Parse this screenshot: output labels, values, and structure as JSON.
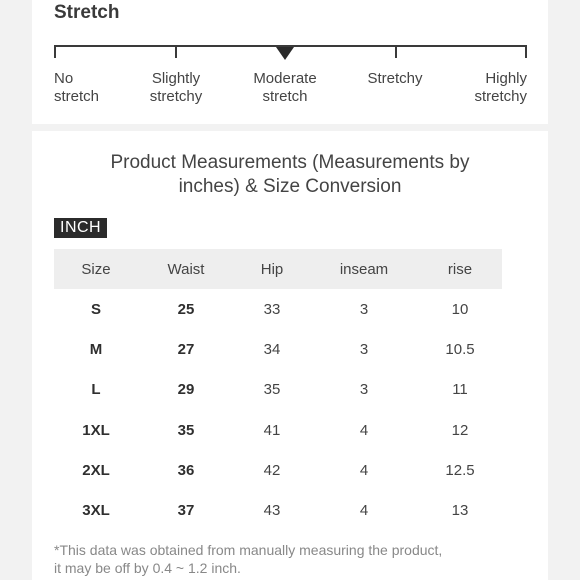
{
  "stretch": {
    "title": "Stretch",
    "labels": [
      {
        "line1": "No",
        "line2": "stretch"
      },
      {
        "line1": "Slightly",
        "line2": "stretchy"
      },
      {
        "line1": "Moderate",
        "line2": "stretch"
      },
      {
        "line1": "Stretchy",
        "line2": ""
      },
      {
        "line1": "Highly",
        "line2": "stretchy"
      }
    ],
    "selected_index": 2
  },
  "measurements": {
    "title_line1": "Product Measurements (Measurements by",
    "title_line2": "inches) & Size Conversion",
    "unit_badge": "INCH",
    "headers": [
      "Size",
      "Waist",
      "Hip",
      "inseam",
      "rise"
    ],
    "rows": [
      [
        "S",
        "25",
        "33",
        "3",
        "10"
      ],
      [
        "M",
        "27",
        "34",
        "3",
        "10.5"
      ],
      [
        "L",
        "29",
        "35",
        "3",
        "11"
      ],
      [
        "1XL",
        "35",
        "41",
        "4",
        "12"
      ],
      [
        "2XL",
        "36",
        "42",
        "4",
        "12.5"
      ],
      [
        "3XL",
        "37",
        "43",
        "4",
        "13"
      ]
    ],
    "footnote_line1": "*This data was obtained from manually measuring the product,",
    "footnote_line2": " it may be off by 0.4 ~ 1.2 inch."
  }
}
